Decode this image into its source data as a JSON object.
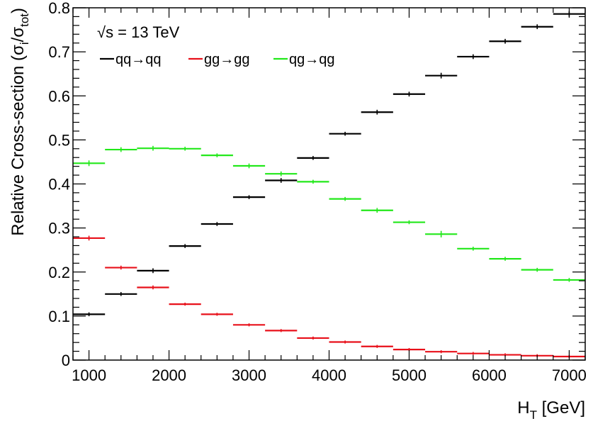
{
  "chart_data": {
    "type": "scatter",
    "style": "histogram-steps-with-errorbars",
    "xlabel_main": "H",
    "xlabel_sub": "T",
    "xlabel_unit": " [GeV]",
    "ylabel_prefix": "Relative Cross-section (σ",
    "ylabel_sub1": "i",
    "ylabel_mid": "/σ",
    "ylabel_sub2": "tot",
    "ylabel_suffix": ")",
    "annotation": "√s = 13 TeV",
    "xlim": [
      800,
      7200
    ],
    "ylim": [
      0,
      0.8
    ],
    "x_ticks": [
      1000,
      2000,
      3000,
      4000,
      5000,
      6000,
      7000
    ],
    "y_ticks": [
      0,
      0.1,
      0.2,
      0.3,
      0.4,
      0.5,
      0.6,
      0.7,
      0.8
    ],
    "y_tick_labels": [
      "0",
      "0.1",
      "0.2",
      "0.3",
      "0.4",
      "0.5",
      "0.6",
      "0.7",
      "0.8"
    ],
    "grid": false,
    "legend_position": "top-left",
    "bin_edges": [
      800,
      1200,
      1600,
      2000,
      2400,
      2800,
      3200,
      3600,
      4000,
      4400,
      4800,
      5200,
      5600,
      6000,
      6400,
      6800,
      7200
    ],
    "series": [
      {
        "name": "qq→qq",
        "color": "#000000",
        "values": [
          0.104,
          0.15,
          0.203,
          0.259,
          0.309,
          0.37,
          0.408,
          0.459,
          0.514,
          0.563,
          0.604,
          0.646,
          0.689,
          0.724,
          0.757,
          0.786
        ],
        "errors": [
          0.002,
          0.002,
          0.003,
          0.002,
          0.002,
          0.002,
          0.003,
          0.002,
          0.002,
          0.003,
          0.003,
          0.004,
          0.003,
          0.003,
          0.003,
          0.004
        ]
      },
      {
        "name": "gg→gg",
        "color": "#e8101a",
        "values": [
          0.277,
          0.21,
          0.165,
          0.127,
          0.104,
          0.08,
          0.067,
          0.05,
          0.041,
          0.031,
          0.024,
          0.019,
          0.015,
          0.012,
          0.01,
          0.008
        ],
        "errors": [
          0.003,
          0.002,
          0.002,
          0.001,
          0.001,
          0.001,
          0.001,
          0.001,
          0.001,
          0.001,
          0.001,
          0.001,
          0.001,
          0.001,
          0.001,
          0.001
        ]
      },
      {
        "name": "qg→qg",
        "color": "#22e81a",
        "values": [
          0.447,
          0.478,
          0.481,
          0.48,
          0.465,
          0.441,
          0.423,
          0.405,
          0.366,
          0.34,
          0.313,
          0.286,
          0.253,
          0.23,
          0.205,
          0.182
        ],
        "errors": [
          0.004,
          0.003,
          0.003,
          0.002,
          0.002,
          0.003,
          0.003,
          0.002,
          0.002,
          0.003,
          0.002,
          0.005,
          0.002,
          0.002,
          0.002,
          0.002
        ]
      }
    ]
  }
}
